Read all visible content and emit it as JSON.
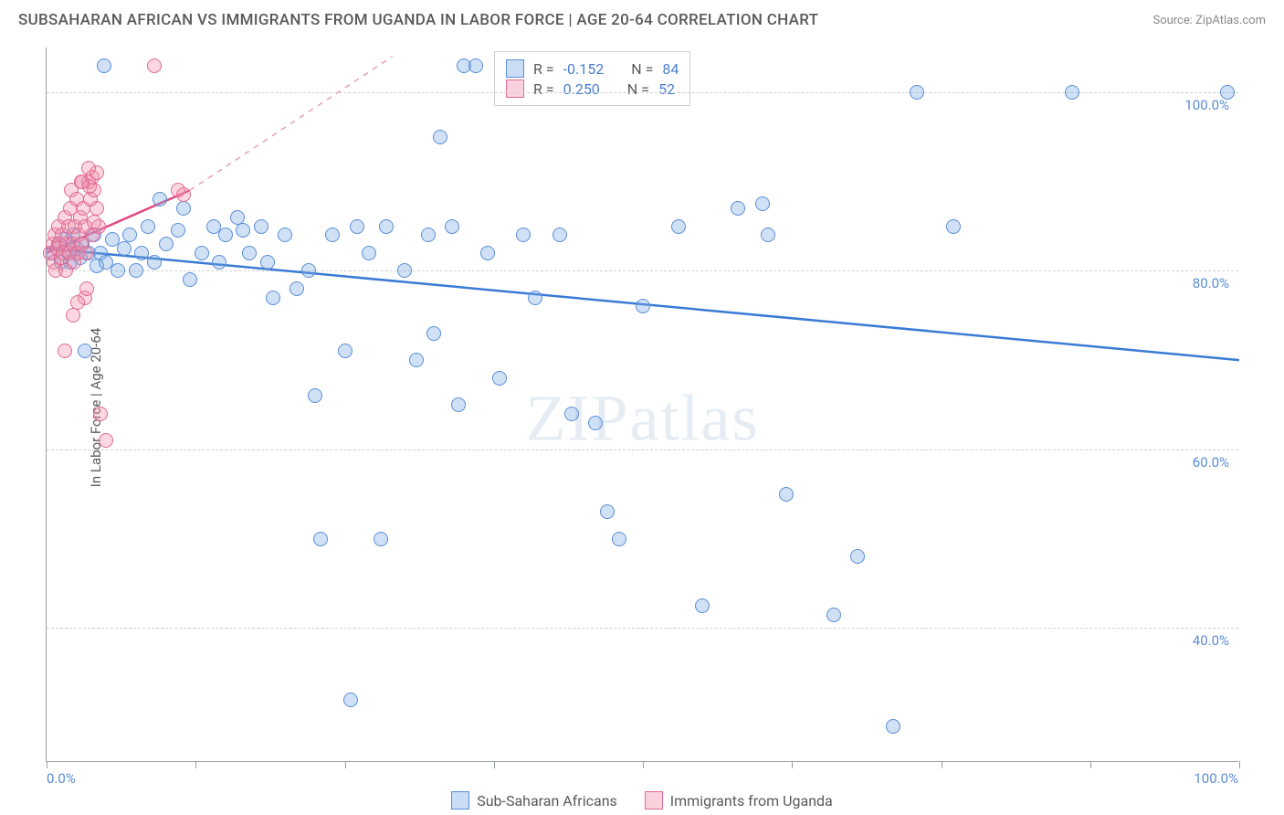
{
  "title": "SUBSAHARAN AFRICAN VS IMMIGRANTS FROM UGANDA IN LABOR FORCE | AGE 20-64 CORRELATION CHART",
  "source_label": "Source: ",
  "source_name": "ZipAtlas.com",
  "y_axis_label": "In Labor Force | Age 20-64",
  "watermark": "ZIPatlas",
  "chart": {
    "type": "scatter",
    "xlim": [
      0,
      100
    ],
    "ylim": [
      25,
      105
    ],
    "y_ticks": [
      40,
      60,
      80,
      100
    ],
    "y_tick_labels": [
      "40.0%",
      "60.0%",
      "80.0%",
      "100.0%"
    ],
    "x_minor_ticks": [
      0,
      12.5,
      25,
      37.5,
      50,
      62.5,
      75,
      87.5,
      100
    ],
    "x_tick_labels": {
      "0": "0.0%",
      "100": "100.0%"
    },
    "background_color": "#ffffff",
    "grid_color": "#d0d0d0",
    "marker_size": 16,
    "series": [
      {
        "name": "Sub-Saharan Africans",
        "color_fill": "rgba(120,170,230,0.35)",
        "color_stroke": "#5a8dd6",
        "R": "-0.152",
        "N": "84",
        "trend": {
          "x1": 0,
          "y1": 82.5,
          "x2": 100,
          "y2": 70.0,
          "stroke": "#3a7bd5",
          "width": 2.5,
          "dash": "none"
        },
        "points": [
          [
            0.5,
            82
          ],
          [
            1,
            83
          ],
          [
            1.2,
            81
          ],
          [
            1.5,
            83.5
          ],
          [
            1.8,
            82
          ],
          [
            2,
            81
          ],
          [
            2.2,
            84
          ],
          [
            2.5,
            82.5
          ],
          [
            2.8,
            81.5
          ],
          [
            3,
            83
          ],
          [
            3.2,
            71
          ],
          [
            3.5,
            82
          ],
          [
            4,
            84
          ],
          [
            4.2,
            80.5
          ],
          [
            4.5,
            82
          ],
          [
            5,
            81
          ],
          [
            5.5,
            83.5
          ],
          [
            6,
            80
          ],
          [
            6.5,
            82.5
          ],
          [
            7,
            84
          ],
          [
            7.5,
            80
          ],
          [
            8,
            82
          ],
          [
            8.5,
            85
          ],
          [
            9,
            81
          ],
          [
            10,
            83
          ],
          [
            11,
            84.5
          ],
          [
            11.5,
            87
          ],
          [
            12,
            79
          ],
          [
            13,
            82
          ],
          [
            14,
            85
          ],
          [
            14.5,
            81
          ],
          [
            15,
            84
          ],
          [
            16,
            86
          ],
          [
            16.5,
            84.5
          ],
          [
            17,
            82
          ],
          [
            18,
            85
          ],
          [
            18.5,
            81
          ],
          [
            19,
            77
          ],
          [
            20,
            84
          ],
          [
            21,
            78
          ],
          [
            22,
            80
          ],
          [
            22.5,
            66
          ],
          [
            23,
            50
          ],
          [
            24,
            84
          ],
          [
            25,
            71
          ],
          [
            25.5,
            32
          ],
          [
            26,
            85
          ],
          [
            27,
            82
          ],
          [
            28,
            50
          ],
          [
            28.5,
            85
          ],
          [
            30,
            80
          ],
          [
            31,
            70
          ],
          [
            32,
            84
          ],
          [
            32.5,
            73
          ],
          [
            33,
            95
          ],
          [
            34,
            85
          ],
          [
            34.5,
            65
          ],
          [
            35,
            103
          ],
          [
            36,
            103
          ],
          [
            37,
            82
          ],
          [
            38,
            68
          ],
          [
            40,
            84
          ],
          [
            41,
            77
          ],
          [
            43,
            84
          ],
          [
            44,
            64
          ],
          [
            46,
            63
          ],
          [
            47,
            53
          ],
          [
            48,
            50
          ],
          [
            50,
            76
          ],
          [
            53,
            85
          ],
          [
            55,
            42.5
          ],
          [
            58,
            87
          ],
          [
            60,
            87.5
          ],
          [
            60.5,
            84
          ],
          [
            62,
            55
          ],
          [
            66,
            41.5
          ],
          [
            68,
            48
          ],
          [
            71,
            29
          ],
          [
            73,
            100
          ],
          [
            76,
            85
          ],
          [
            86,
            100
          ],
          [
            99,
            100
          ],
          [
            4.8,
            103
          ],
          [
            9.5,
            88
          ]
        ]
      },
      {
        "name": "Immigrants from Uganda",
        "color_fill": "rgba(240,140,170,0.35)",
        "color_stroke": "#e06a94",
        "R": "0.250",
        "N": "52",
        "trend_solid": {
          "x1": 0,
          "y1": 82,
          "x2": 12,
          "y2": 89,
          "stroke": "#e04a80",
          "width": 2.5
        },
        "trend_dash": {
          "x1": 12,
          "y1": 89,
          "x2": 29,
          "y2": 104,
          "stroke": "#e8a0b8",
          "width": 1.5
        },
        "points": [
          [
            0.3,
            82
          ],
          [
            0.5,
            83
          ],
          [
            0.6,
            81
          ],
          [
            0.7,
            84
          ],
          [
            0.8,
            80
          ],
          [
            0.9,
            82.5
          ],
          [
            1,
            85
          ],
          [
            1.1,
            83
          ],
          [
            1.2,
            81.5
          ],
          [
            1.3,
            84
          ],
          [
            1.4,
            82
          ],
          [
            1.5,
            86
          ],
          [
            1.6,
            80
          ],
          [
            1.7,
            83
          ],
          [
            1.8,
            85
          ],
          [
            1.9,
            82
          ],
          [
            2,
            87
          ],
          [
            2.1,
            89
          ],
          [
            2.2,
            83
          ],
          [
            2.3,
            81
          ],
          [
            2.4,
            85
          ],
          [
            2.5,
            88
          ],
          [
            2.6,
            82
          ],
          [
            2.7,
            84
          ],
          [
            2.8,
            86
          ],
          [
            2.9,
            83
          ],
          [
            3,
            90
          ],
          [
            3.1,
            87
          ],
          [
            3.2,
            85
          ],
          [
            3.3,
            82
          ],
          [
            3.5,
            90
          ],
          [
            3.7,
            88
          ],
          [
            3.8,
            84
          ],
          [
            4,
            89
          ],
          [
            4.2,
            87
          ],
          [
            4.4,
            85
          ],
          [
            3.2,
            77
          ],
          [
            3.4,
            78
          ],
          [
            2.6,
            76.5
          ],
          [
            2.2,
            75
          ],
          [
            1.5,
            71
          ],
          [
            4.5,
            64
          ],
          [
            5,
            61
          ],
          [
            3.8,
            90.5
          ],
          [
            4.2,
            91
          ],
          [
            3.5,
            91.5
          ],
          [
            9,
            103
          ],
          [
            11,
            89
          ],
          [
            11.5,
            88.5
          ],
          [
            2.9,
            90
          ],
          [
            3.6,
            89.5
          ],
          [
            4.0,
            85.5
          ]
        ]
      }
    ]
  },
  "stats_box": {
    "R_label": "R =",
    "N_label": "N ="
  },
  "legend": {
    "series1": "Sub-Saharan Africans",
    "series2": "Immigrants from Uganda"
  }
}
